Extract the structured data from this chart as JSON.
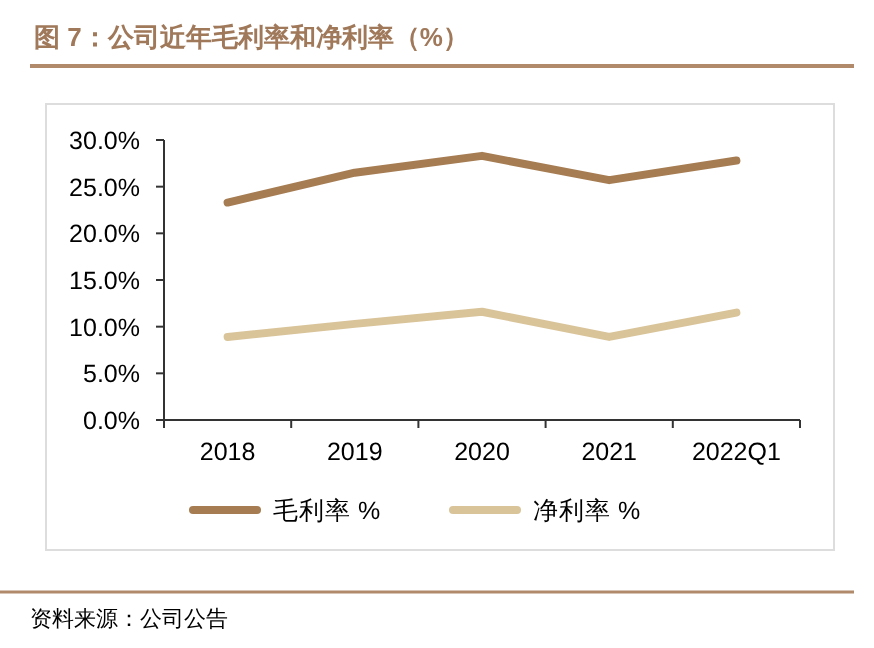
{
  "chart_data": {
    "type": "line",
    "title": "图 7：公司近年毛利率和净利率（%）",
    "categories": [
      "2018",
      "2019",
      "2020",
      "2021",
      "2022Q1"
    ],
    "series": [
      {
        "name": "毛利率 %",
        "color": "#a67c52",
        "values": [
          23.3,
          26.5,
          28.3,
          25.7,
          27.8
        ]
      },
      {
        "name": "净利率 %",
        "color": "#d9c49a",
        "values": [
          8.9,
          10.3,
          11.6,
          8.9,
          11.5
        ]
      }
    ],
    "ylim": [
      0,
      30
    ],
    "yticks": [
      {
        "value": 0,
        "label": "0.0%"
      },
      {
        "value": 5,
        "label": "5.0%"
      },
      {
        "value": 10,
        "label": "10.0%"
      },
      {
        "value": 15,
        "label": "15.0%"
      },
      {
        "value": 20,
        "label": "20.0%"
      },
      {
        "value": 25,
        "label": "25.0%"
      },
      {
        "value": 30,
        "label": "30.0%"
      }
    ],
    "grid": false,
    "legend": "bottom",
    "marker": "none",
    "line_style": "solid",
    "annotations": [
      "资料来源：公司公告"
    ]
  }
}
